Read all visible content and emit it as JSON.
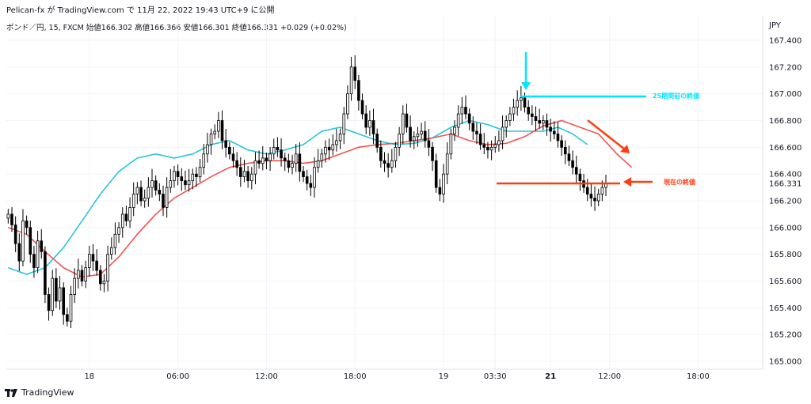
{
  "header": {
    "publish_line": "Pelican-fx が TradingView.com で 11月 22, 2022 19:43 UTC+9 に公開",
    "symbol_line": "ポンド／円, 15, FXCM  始値166.302  高値166.366  安値166.301  終値166.331  +0.029 (+0.02%)",
    "currency": "JPY"
  },
  "footer": {
    "brand": "TradingView",
    "logo_icon": "tradingview-logo-icon"
  },
  "annotations": {
    "top_label": "25期間前の終値",
    "current_label": "現在の終値",
    "cyan_color": "#00e5ff",
    "red_color": "#ff3d0f"
  },
  "chart_data": {
    "type": "candlestick",
    "ylim": [
      165.0,
      167.5
    ],
    "y_ticks": [
      165.0,
      165.2,
      165.4,
      165.6,
      165.8,
      166.0,
      166.2,
      166.4,
      166.6,
      166.8,
      167.0,
      167.2,
      167.4
    ],
    "y_tick_labels": [
      "165.000",
      "165.200",
      "165.400",
      "165.600",
      "165.800",
      "166.000",
      "166.200",
      "166.400",
      "166.600",
      "166.800",
      "167.000",
      "167.200",
      "167.400"
    ],
    "current_price_label": "166.331",
    "current_price": 166.331,
    "x_ticks": [
      {
        "label": "18",
        "bar": 22,
        "bold": false
      },
      {
        "label": "06:00",
        "bar": 46,
        "bold": false
      },
      {
        "label": "12:00",
        "bar": 70,
        "bold": false
      },
      {
        "label": "18:00",
        "bar": 94,
        "bold": false
      },
      {
        "label": "19",
        "bar": 118,
        "bold": false
      },
      {
        "label": "03:30",
        "bar": 132,
        "bold": false
      },
      {
        "label": "21",
        "bar": 147,
        "bold": true
      },
      {
        "label": "12:00",
        "bar": 163,
        "bold": false
      },
      {
        "label": "18:00",
        "bar": 187,
        "bold": false
      }
    ],
    "num_slots": 205,
    "closes": [
      166.1,
      166.02,
      165.88,
      165.75,
      166.05,
      166.0,
      165.8,
      165.7,
      165.9,
      165.82,
      165.5,
      165.38,
      165.62,
      165.45,
      165.55,
      165.35,
      165.3,
      165.5,
      165.62,
      165.68,
      165.6,
      165.7,
      165.8,
      165.75,
      165.68,
      165.58,
      165.6,
      165.8,
      165.85,
      165.95,
      166.0,
      166.1,
      166.05,
      166.15,
      166.25,
      166.3,
      166.2,
      166.22,
      166.3,
      166.35,
      166.28,
      166.25,
      166.15,
      166.3,
      166.35,
      166.42,
      166.38,
      166.35,
      166.32,
      166.35,
      166.4,
      166.38,
      166.45,
      166.55,
      166.62,
      166.7,
      166.72,
      166.8,
      166.65,
      166.6,
      166.55,
      166.5,
      166.45,
      166.38,
      166.42,
      166.35,
      166.4,
      166.5,
      166.48,
      166.52,
      166.5,
      166.55,
      166.6,
      166.58,
      166.52,
      166.5,
      166.45,
      166.48,
      166.55,
      166.42,
      166.38,
      166.33,
      166.3,
      166.45,
      166.5,
      166.55,
      166.6,
      166.58,
      166.62,
      166.65,
      166.7,
      166.85,
      167.0,
      167.2,
      167.1,
      166.95,
      166.85,
      166.75,
      166.8,
      166.7,
      166.6,
      166.5,
      166.48,
      166.45,
      166.5,
      166.6,
      166.7,
      166.85,
      166.75,
      166.65,
      166.68,
      166.7,
      166.72,
      166.65,
      166.6,
      166.5,
      166.3,
      166.25,
      166.4,
      166.55,
      166.7,
      166.75,
      166.85,
      166.9,
      166.85,
      166.78,
      166.72,
      166.7,
      166.62,
      166.6,
      166.58,
      166.6,
      166.62,
      166.65,
      166.75,
      166.8,
      166.85,
      166.9,
      166.95,
      166.97,
      166.9,
      166.85,
      166.83,
      166.8,
      166.78,
      166.8,
      166.75,
      166.72,
      166.7,
      166.65,
      166.6,
      166.55,
      166.5,
      166.45,
      166.4,
      166.35,
      166.3,
      166.25,
      166.22,
      166.2,
      166.25,
      166.3,
      166.331
    ],
    "sma_cyan": {
      "name": "",
      "color": "#26c6da",
      "points": [
        [
          0,
          165.7
        ],
        [
          5,
          165.65
        ],
        [
          10,
          165.7
        ],
        [
          15,
          165.85
        ],
        [
          20,
          166.05
        ],
        [
          25,
          166.25
        ],
        [
          30,
          166.42
        ],
        [
          35,
          166.52
        ],
        [
          40,
          166.55
        ],
        [
          45,
          166.52
        ],
        [
          50,
          166.55
        ],
        [
          55,
          166.62
        ],
        [
          60,
          166.65
        ],
        [
          65,
          166.58
        ],
        [
          70,
          166.55
        ],
        [
          75,
          166.58
        ],
        [
          80,
          166.62
        ],
        [
          85,
          166.72
        ],
        [
          90,
          166.75
        ],
        [
          95,
          166.7
        ],
        [
          100,
          166.65
        ],
        [
          105,
          166.62
        ],
        [
          110,
          166.63
        ],
        [
          115,
          166.67
        ],
        [
          120,
          166.75
        ],
        [
          125,
          166.8
        ],
        [
          130,
          166.77
        ],
        [
          135,
          166.72
        ],
        [
          140,
          166.72
        ],
        [
          145,
          166.72
        ],
        [
          149,
          166.75
        ],
        [
          153,
          166.7
        ],
        [
          157,
          166.62
        ]
      ]
    },
    "sma_red": {
      "name": "",
      "color": "#ef5350",
      "points": [
        [
          0,
          166.0
        ],
        [
          5,
          165.95
        ],
        [
          10,
          165.82
        ],
        [
          15,
          165.7
        ],
        [
          20,
          165.63
        ],
        [
          25,
          165.65
        ],
        [
          30,
          165.78
        ],
        [
          35,
          165.95
        ],
        [
          40,
          166.1
        ],
        [
          45,
          166.22
        ],
        [
          50,
          166.3
        ],
        [
          55,
          166.38
        ],
        [
          60,
          166.45
        ],
        [
          65,
          166.48
        ],
        [
          70,
          166.5
        ],
        [
          75,
          166.5
        ],
        [
          80,
          166.48
        ],
        [
          85,
          166.5
        ],
        [
          90,
          166.55
        ],
        [
          95,
          166.6
        ],
        [
          100,
          166.62
        ],
        [
          105,
          166.63
        ],
        [
          110,
          166.65
        ],
        [
          115,
          166.67
        ],
        [
          120,
          166.7
        ],
        [
          125,
          166.65
        ],
        [
          130,
          166.62
        ],
        [
          135,
          166.63
        ],
        [
          140,
          166.68
        ],
        [
          145,
          166.76
        ],
        [
          150,
          166.8
        ],
        [
          155,
          166.75
        ],
        [
          160,
          166.7
        ],
        [
          165,
          166.55
        ],
        [
          169,
          166.45
        ]
      ]
    }
  }
}
